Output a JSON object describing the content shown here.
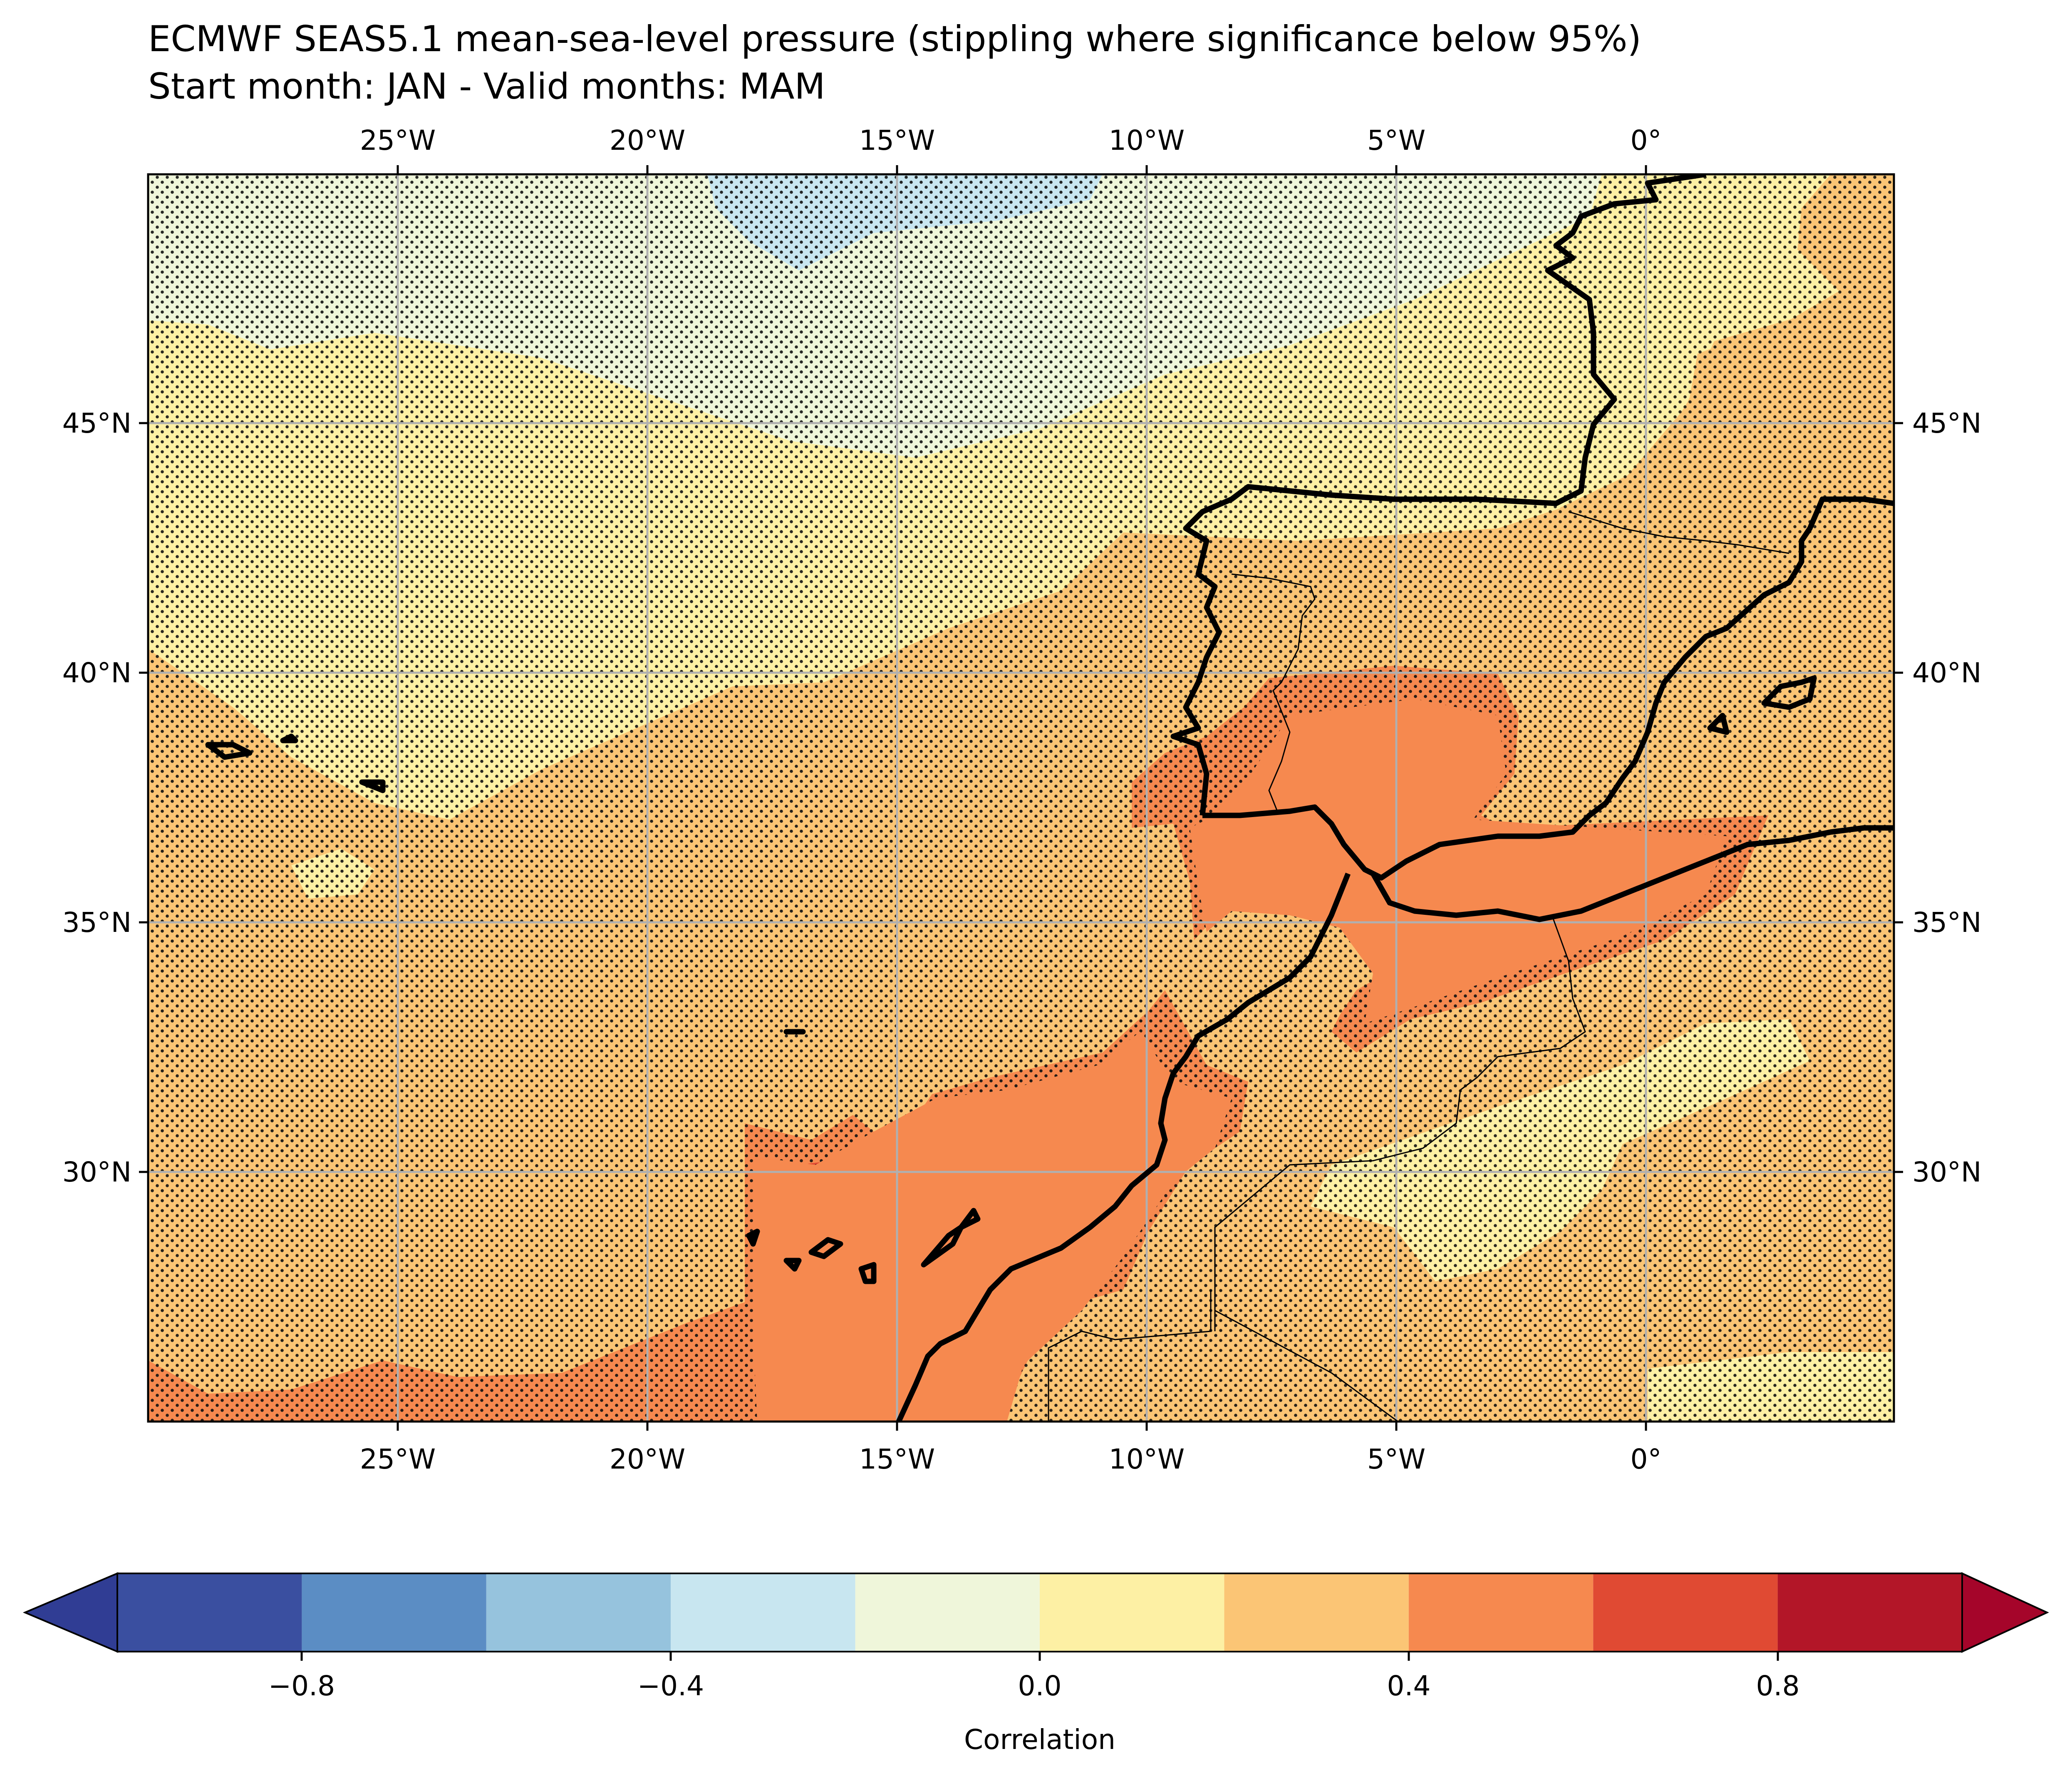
{
  "title": {
    "line1": "ECMWF SEAS5.1 mean-sea-level pressure (stippling where significance below 95%)",
    "line2": "Start month: JAN - Valid months: MAM"
  },
  "map": {
    "lon_range": [
      -29.5,
      5.0
    ],
    "lat_range": [
      25.0,
      49.5
    ],
    "lon_ticks": [
      "25°W",
      "20°W",
      "15°W",
      "10°W",
      "5°W",
      "0°"
    ],
    "lat_ticks": [
      "45°N",
      "40°N",
      "35°N",
      "30°N"
    ],
    "gridlines": true,
    "coastlines": true,
    "borders": true,
    "stippling": "significance below 95%"
  },
  "colorbar": {
    "label": "Correlation",
    "tick_labels": [
      "−0.8",
      "−0.4",
      "0.0",
      "0.4",
      "0.8"
    ],
    "levels": [
      -1.0,
      -0.8,
      -0.6,
      -0.4,
      -0.2,
      0.0,
      0.2,
      0.4,
      0.6,
      0.8,
      1.0
    ],
    "colors": [
      "#3a4fa0",
      "#5b8dc4",
      "#96c3dd",
      "#c8e6f0",
      "#eff6da",
      "#fdf0a4",
      "#fbc575",
      "#f6894f",
      "#e04a33",
      "#b31628"
    ],
    "under_color": "#303d94",
    "over_color": "#a5052a"
  }
}
